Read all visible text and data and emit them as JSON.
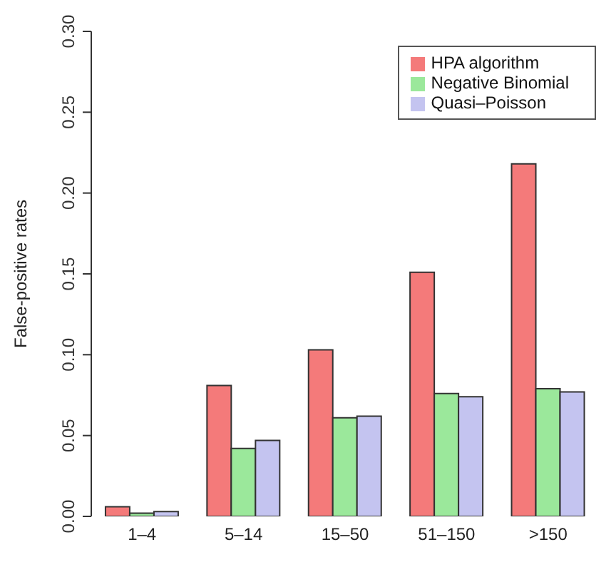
{
  "chart_data": {
    "type": "bar",
    "ylabel": "False-positive rates",
    "categories": [
      "1–4",
      "5–14",
      "15–50",
      "51–150",
      ">150"
    ],
    "series": [
      {
        "name": "HPA algorithm",
        "color": "#f47a7a",
        "values": [
          0.006,
          0.081,
          0.103,
          0.151,
          0.218
        ]
      },
      {
        "name": "Negative Binomial",
        "color": "#9be89b",
        "values": [
          0.002,
          0.042,
          0.061,
          0.076,
          0.079
        ]
      },
      {
        "name": "Quasi–Poisson",
        "color": "#c4c4f0",
        "values": [
          0.003,
          0.047,
          0.062,
          0.074,
          0.077
        ]
      }
    ],
    "ylim": [
      0,
      0.3
    ],
    "yticks": [
      {
        "value": 0,
        "label": "0.00"
      },
      {
        "value": 0.05,
        "label": "0.05"
      },
      {
        "value": 0.1,
        "label": "0.10"
      },
      {
        "value": 0.15,
        "label": "0.15"
      },
      {
        "value": 0.2,
        "label": "0.20"
      },
      {
        "value": 0.25,
        "label": "0.25"
      },
      {
        "value": 0.3,
        "label": "0.30"
      }
    ],
    "grid": false,
    "legend": "top right"
  }
}
